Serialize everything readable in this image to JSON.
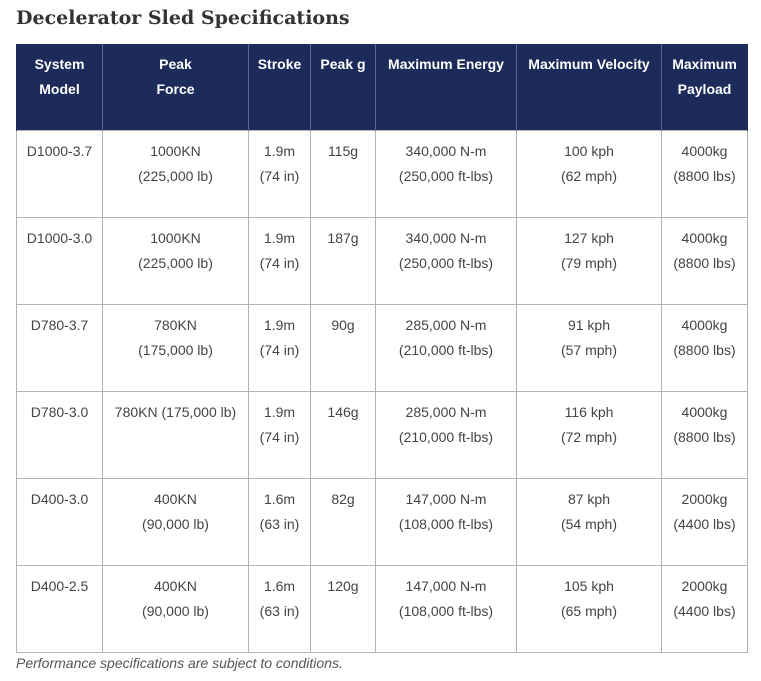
{
  "title": "Decelerator Sled Specifications",
  "columns": [
    {
      "line1": "System",
      "line2": "Model"
    },
    {
      "line1": "Peak",
      "line2": "Force"
    },
    {
      "line1": "Stroke",
      "line2": ""
    },
    {
      "line1": "Peak g",
      "line2": ""
    },
    {
      "line1": "Maximum Energy",
      "line2": ""
    },
    {
      "line1": "Maximum Velocity",
      "line2": ""
    },
    {
      "line1": "Maximum",
      "line2": "Payload"
    }
  ],
  "rows": [
    {
      "model": "D1000-3.7",
      "force": {
        "line1": "1000KN",
        "line2": "(225,000 lb)"
      },
      "stroke": {
        "line1": "1.9m",
        "line2": "(74 in)"
      },
      "peak_g": "115g",
      "energy": {
        "line1": "340,000 N-m",
        "line2": "(250,000 ft-lbs)"
      },
      "velocity": {
        "line1": "100 kph",
        "line2": "(62 mph)"
      },
      "payload": {
        "line1": "4000kg",
        "line2": "(8800 lbs)"
      }
    },
    {
      "model": "D1000-3.0",
      "force": {
        "line1": "1000KN",
        "line2": "(225,000 lb)"
      },
      "stroke": {
        "line1": "1.9m",
        "line2": "(74 in)"
      },
      "peak_g": "187g",
      "energy": {
        "line1": "340,000 N-m",
        "line2": "(250,000 ft-lbs)"
      },
      "velocity": {
        "line1": "127 kph",
        "line2": "(79 mph)"
      },
      "payload": {
        "line1": "4000kg",
        "line2": "(8800 lbs)"
      }
    },
    {
      "model": "D780-3.7",
      "force": {
        "line1": "780KN",
        "line2": "(175,000 lb)"
      },
      "stroke": {
        "line1": "1.9m",
        "line2": "(74 in)"
      },
      "peak_g": "90g",
      "energy": {
        "line1": "285,000 N-m",
        "line2": "(210,000 ft-lbs)"
      },
      "velocity": {
        "line1": "91 kph",
        "line2": "(57 mph)"
      },
      "payload": {
        "line1": "4000kg",
        "line2": "(8800 lbs)"
      }
    },
    {
      "model": "D780-3.0",
      "force": {
        "line1": "780KN (175,000 lb)",
        "line2": ""
      },
      "stroke": {
        "line1": "1.9m",
        "line2": "(74 in)"
      },
      "peak_g": "146g",
      "energy": {
        "line1": "285,000 N-m",
        "line2": "(210,000 ft-lbs)"
      },
      "velocity": {
        "line1": "116 kph",
        "line2": "(72 mph)"
      },
      "payload": {
        "line1": "4000kg",
        "line2": "(8800 lbs)"
      }
    },
    {
      "model": "D400-3.0",
      "force": {
        "line1": "400KN",
        "line2": "(90,000 lb)"
      },
      "stroke": {
        "line1": "1.6m",
        "line2": "(63 in)"
      },
      "peak_g": "82g",
      "energy": {
        "line1": "147,000 N-m",
        "line2": "(108,000 ft-lbs)"
      },
      "velocity": {
        "line1": "87 kph",
        "line2": "(54 mph)"
      },
      "payload": {
        "line1": "2000kg",
        "line2": "(4400 lbs)"
      }
    },
    {
      "model": "D400-2.5",
      "force": {
        "line1": "400KN",
        "line2": "(90,000 lb)"
      },
      "stroke": {
        "line1": "1.6m",
        "line2": "(63 in)"
      },
      "peak_g": "120g",
      "energy": {
        "line1": "147,000 N-m",
        "line2": "(108,000 ft-lbs)"
      },
      "velocity": {
        "line1": "105 kph",
        "line2": "(65 mph)"
      },
      "payload": {
        "line1": "2000kg",
        "line2": "(4400 lbs)"
      }
    }
  ],
  "footnote": "Performance specifications are subject to conditions.",
  "colors": {
    "header_bg": "#1c2b5a",
    "header_text": "#ffffff",
    "border": "#b4b4b4",
    "body_text": "#444444"
  }
}
